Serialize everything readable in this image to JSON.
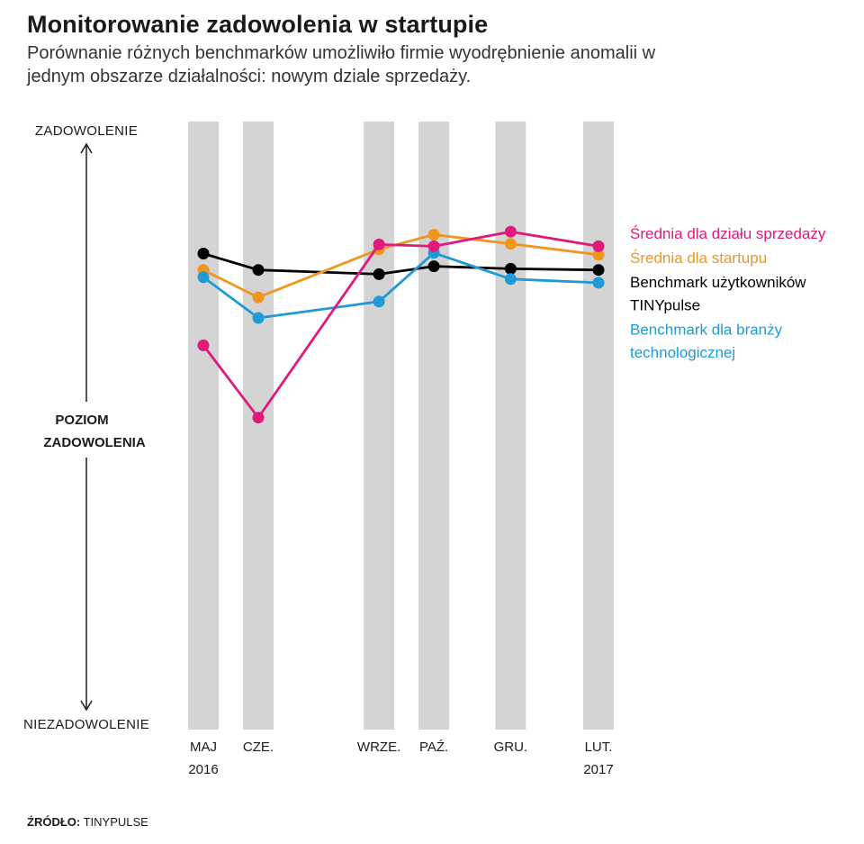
{
  "title": "Monitorowanie zadowolenia w startupie",
  "subtitle": "Porównanie różnych benchmarków umożliwiło firmie wyodrębnienie anomalii w jednym obszarze działalności: nowym dziale sprzedaży.",
  "source": {
    "label": "ŹRÓDŁO:",
    "value": "TINYPULSE"
  },
  "colors": {
    "sales": "#e0197d",
    "startup": "#f0961e",
    "tinypulse": "#000000",
    "tech": "#1e9ad6",
    "band": "#d4d4d4"
  },
  "chart_data": {
    "type": "line",
    "title": "Monitorowanie zadowolenia w startupie",
    "ylabel": "POZIOM ZADOWOLENIA",
    "ylabel_lines": [
      "POZIOM",
      "ZADOWOLENIA"
    ],
    "ylabel_top": "ZADOWOLENIE",
    "ylabel_bottom": "NIEZADOWOLENIE",
    "ylim": [
      0,
      100
    ],
    "xlim": [
      0,
      9
    ],
    "x": [
      0,
      1,
      3.2,
      4.2,
      5.6,
      7.2
    ],
    "categories": [
      {
        "line1": "MAJ",
        "line2": "2016"
      },
      {
        "line1": "CZE.",
        "line2": ""
      },
      {
        "line1": "WRZE.",
        "line2": ""
      },
      {
        "line1": "PAŹ.",
        "line2": ""
      },
      {
        "line1": "GRU.",
        "line2": ""
      },
      {
        "line1": "LUT.",
        "line2": "2017"
      }
    ],
    "series": [
      {
        "key": "tinypulse",
        "name": "Benchmark użytkowników TINYpulse",
        "legend_lines": [
          "Benchmark użytkowników",
          "TINYpulse"
        ],
        "values": [
          78.3,
          75.6,
          74.9,
          76.2,
          75.8,
          75.6
        ]
      },
      {
        "key": "startup",
        "name": "Średnia dla startupu",
        "legend_lines": [
          "Średnia dla startupu"
        ],
        "values": [
          75.6,
          71.1,
          79.0,
          81.4,
          79.9,
          78.1
        ]
      },
      {
        "key": "tech",
        "name": "Benchmark dla branży technologicznej",
        "legend_lines": [
          "Benchmark dla branży",
          "technologicznej"
        ],
        "values": [
          74.4,
          67.7,
          70.4,
          78.4,
          74.1,
          73.5
        ]
      },
      {
        "key": "sales",
        "name": "Średnia dla działu sprzedaży",
        "legend_lines": [
          "Średnia dla działu sprzedaży"
        ],
        "values": [
          63.2,
          51.3,
          79.8,
          79.5,
          81.9,
          79.5
        ]
      }
    ],
    "legend_order": [
      "sales",
      "startup",
      "tinypulse",
      "tech"
    ],
    "grid": false,
    "legend_position": "right"
  }
}
